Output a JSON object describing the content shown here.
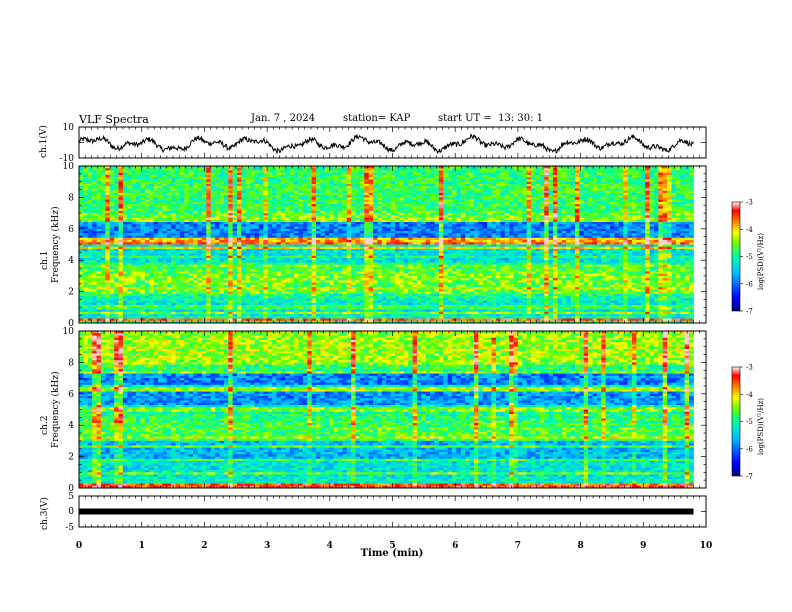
{
  "header": {
    "title": "VLF Spectra",
    "date": "Jan. 7 , 2024",
    "station": "station= KAP",
    "start_ut": "start UT =  13: 30: 1"
  },
  "chart_data": [
    {
      "type": "line",
      "ylabel": "ch.1(V)",
      "ylim": [
        -10,
        10
      ],
      "tick_labels": [
        "10",
        "-10"
      ],
      "x_range_min": [
        0,
        9.8
      ],
      "description_values": "noisy waveform oscillating roughly between -6 and +4 V"
    },
    {
      "type": "heatmap",
      "ylabel_line1": "ch.1",
      "ylabel_line2": "Frequency (kHz)",
      "ylim": [
        0,
        10
      ],
      "yticks": [
        "0",
        "2",
        "4",
        "6",
        "8",
        "10"
      ],
      "x_range_min": [
        0,
        9.8
      ],
      "colorbar": {
        "label": "log(PSD)(V²/Hz)",
        "ticks": [
          "-3",
          "-4",
          "-5",
          "-6",
          "-7"
        ],
        "range": [
          -7,
          -3
        ]
      },
      "bands_khz": [
        {
          "f": 0.2,
          "level": -3.5
        },
        {
          "f": 0.6,
          "level": -4.5
        },
        {
          "f": 1.0,
          "level": -4.8
        },
        {
          "f": 2.0,
          "level": -4.6
        },
        {
          "f": 2.2,
          "level": -4.3
        },
        {
          "f": 3.0,
          "level": -4.8
        },
        {
          "f": 3.6,
          "level": -4.6
        },
        {
          "f": 4.2,
          "level": -4.9
        },
        {
          "f": 4.8,
          "level": -4.2
        },
        {
          "f": 5.05,
          "level": -3.6
        },
        {
          "f": 5.3,
          "level": -3.9
        },
        {
          "f": 6.6,
          "level": -4.4
        },
        {
          "f": 7.0,
          "level": -4.7
        }
      ]
    },
    {
      "type": "heatmap",
      "ylabel_line1": "ch.2",
      "ylabel_line2": "Frequency (kHz)",
      "ylim": [
        0,
        10
      ],
      "yticks": [
        "0",
        "2",
        "4",
        "6",
        "8",
        "10"
      ],
      "x_range_min": [
        0,
        9.8
      ],
      "colorbar": {
        "label": "log(PSD)(V²/Hz)",
        "ticks": [
          "-3",
          "-4",
          "-5",
          "-6",
          "-7"
        ],
        "range": [
          -7,
          -3
        ]
      },
      "bands_khz": [
        {
          "f": 0.15,
          "level": -3.5
        },
        {
          "f": 0.9,
          "level": -4.6
        },
        {
          "f": 1.8,
          "level": -4.8
        },
        {
          "f": 2.6,
          "level": -4.7
        },
        {
          "f": 3.2,
          "level": -4.3
        },
        {
          "f": 3.8,
          "level": -4.6
        },
        {
          "f": 4.4,
          "level": -4.9
        },
        {
          "f": 5.0,
          "level": -4.5
        },
        {
          "f": 6.3,
          "level": -4.4
        },
        {
          "f": 7.4,
          "level": -4.5
        }
      ]
    },
    {
      "type": "line",
      "ylabel": "ch.3(V)",
      "ylim": [
        -5,
        5
      ],
      "tick_labels": [
        "5",
        "0",
        "-5"
      ],
      "x_range_min": [
        0,
        9.8
      ],
      "constant_value": 0
    }
  ],
  "xaxis": {
    "label": "Time (min)",
    "ticks": [
      "0",
      "1",
      "2",
      "3",
      "4",
      "5",
      "6",
      "7",
      "8",
      "9",
      "10"
    ],
    "xlim": [
      0,
      10
    ]
  },
  "colors": {
    "jet_stops": [
      "#00007f",
      "#0000ff",
      "#00bfff",
      "#00ffaa",
      "#66ff00",
      "#ffff00",
      "#ff8000",
      "#ff0000",
      "#ffd0d0"
    ]
  }
}
